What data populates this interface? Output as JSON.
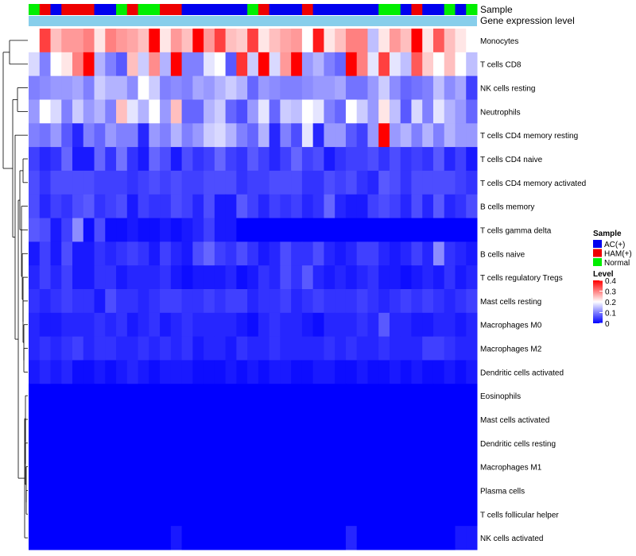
{
  "chart_data": {
    "type": "heatmap",
    "annotation_labels": {
      "sample": "Sample",
      "gene_expression": "Gene expression level"
    },
    "rows": [
      "Monocytes",
      "T cells CD8",
      "NK cells resting",
      "Neutrophils",
      "T cells CD4 memory resting",
      "T cells CD4 naive",
      "T cells CD4 memory activated",
      "B cells memory",
      "T cells gamma delta",
      "B cells naive",
      "T cells regulatory  Tregs",
      "Mast cells resting",
      "Macrophages M0",
      "Macrophages M2",
      "Dendritic cells activated",
      "Eosinophils",
      "Mast cells activated",
      "Dendritic cells resting",
      "Macrophages M1",
      "Plasma cells",
      "T cells follicular helper",
      "NK cells activated"
    ],
    "sample_groups": [
      "Normal",
      "HAM(+)",
      "AC(+)",
      "HAM(+)",
      "HAM(+)",
      "HAM(+)",
      "AC(+)",
      "AC(+)",
      "Normal",
      "HAM(+)",
      "Normal",
      "Normal",
      "HAM(+)",
      "HAM(+)",
      "AC(+)",
      "AC(+)",
      "AC(+)",
      "AC(+)",
      "AC(+)",
      "AC(+)",
      "Normal",
      "HAM(+)",
      "AC(+)",
      "AC(+)",
      "AC(+)",
      "HAM(+)",
      "AC(+)",
      "AC(+)",
      "AC(+)",
      "AC(+)",
      "AC(+)",
      "AC(+)",
      "Normal",
      "Normal",
      "AC(+)",
      "HAM(+)",
      "AC(+)",
      "AC(+)",
      "Normal",
      "AC(+)",
      "Normal"
    ],
    "values": [
      [
        0.2,
        0.35,
        0.25,
        0.28,
        0.28,
        0.3,
        0.22,
        0.3,
        0.28,
        0.27,
        0.25,
        0.4,
        0.22,
        0.28,
        0.25,
        0.4,
        0.28,
        0.35,
        0.25,
        0.24,
        0.35,
        0.22,
        0.25,
        0.27,
        0.28,
        0.2,
        0.38,
        0.22,
        0.25,
        0.3,
        0.3,
        0.15,
        0.22,
        0.28,
        0.25,
        0.4,
        0.22,
        0.33,
        0.25,
        0.22,
        0.2
      ],
      [
        0.17,
        0.1,
        0.2,
        0.22,
        0.3,
        0.42,
        0.14,
        0.1,
        0.07,
        0.25,
        0.16,
        0.29,
        0.14,
        0.4,
        0.1,
        0.1,
        0.18,
        0.2,
        0.07,
        0.36,
        0.16,
        0.42,
        0.17,
        0.28,
        0.4,
        0.12,
        0.14,
        0.1,
        0.08,
        0.4,
        0.3,
        0.18,
        0.35,
        0.18,
        0.15,
        0.33,
        0.24,
        0.2,
        0.25,
        0.2,
        0.15
      ],
      [
        0.1,
        0.11,
        0.12,
        0.12,
        0.13,
        0.1,
        0.16,
        0.14,
        0.14,
        0.11,
        0.2,
        0.16,
        0.1,
        0.11,
        0.1,
        0.13,
        0.12,
        0.14,
        0.16,
        0.14,
        0.08,
        0.12,
        0.11,
        0.1,
        0.1,
        0.11,
        0.12,
        0.12,
        0.13,
        0.09,
        0.09,
        0.12,
        0.16,
        0.11,
        0.08,
        0.09,
        0.1,
        0.15,
        0.11,
        0.13,
        0.05
      ],
      [
        0.12,
        0.2,
        0.17,
        0.1,
        0.16,
        0.12,
        0.14,
        0.1,
        0.25,
        0.18,
        0.14,
        0.2,
        0.12,
        0.25,
        0.08,
        0.08,
        0.14,
        0.16,
        0.08,
        0.06,
        0.12,
        0.18,
        0.08,
        0.16,
        0.15,
        0.2,
        0.18,
        0.1,
        0.08,
        0.2,
        0.16,
        0.12,
        0.22,
        0.15,
        0.07,
        0.17,
        0.1,
        0.18,
        0.14,
        0.12,
        0.08
      ],
      [
        0.1,
        0.09,
        0.12,
        0.07,
        0.03,
        0.1,
        0.08,
        0.12,
        0.1,
        0.1,
        0.03,
        0.12,
        0.1,
        0.14,
        0.1,
        0.12,
        0.16,
        0.17,
        0.14,
        0.1,
        0.08,
        0.14,
        0.03,
        0.1,
        0.06,
        0.18,
        0.03,
        0.12,
        0.12,
        0.07,
        0.05,
        0.12,
        0.4,
        0.12,
        0.14,
        0.1,
        0.14,
        0.1,
        0.14,
        0.12,
        0.12
      ],
      [
        0.05,
        0.03,
        0.04,
        0.08,
        0.02,
        0.02,
        0.08,
        0.04,
        0.09,
        0.04,
        0.02,
        0.08,
        0.06,
        0.02,
        0.06,
        0.04,
        0.05,
        0.08,
        0.05,
        0.04,
        0.07,
        0.05,
        0.03,
        0.05,
        0.08,
        0.05,
        0.06,
        0.02,
        0.04,
        0.05,
        0.05,
        0.06,
        0.04,
        0.06,
        0.04,
        0.05,
        0.04,
        0.07,
        0.03,
        0.05,
        0.02
      ],
      [
        0.06,
        0.04,
        0.06,
        0.06,
        0.06,
        0.06,
        0.05,
        0.05,
        0.05,
        0.04,
        0.05,
        0.06,
        0.05,
        0.06,
        0.05,
        0.05,
        0.06,
        0.06,
        0.06,
        0.04,
        0.05,
        0.05,
        0.06,
        0.06,
        0.06,
        0.04,
        0.04,
        0.06,
        0.05,
        0.06,
        0.04,
        0.03,
        0.07,
        0.06,
        0.04,
        0.06,
        0.06,
        0.06,
        0.06,
        0.05,
        0.04
      ],
      [
        0.06,
        0.03,
        0.05,
        0.04,
        0.06,
        0.07,
        0.04,
        0.05,
        0.06,
        0.02,
        0.05,
        0.04,
        0.04,
        0.06,
        0.05,
        0.03,
        0.06,
        0.02,
        0.02,
        0.07,
        0.05,
        0.03,
        0.05,
        0.04,
        0.05,
        0.03,
        0.04,
        0.08,
        0.03,
        0.02,
        0.02,
        0.05,
        0.06,
        0.05,
        0.03,
        0.06,
        0.03,
        0.07,
        0.03,
        0.04,
        0.06
      ],
      [
        0.07,
        0.06,
        0.02,
        0.05,
        0.11,
        0.01,
        0.06,
        0.01,
        0.01,
        0.02,
        0.01,
        0.01,
        0.02,
        0.01,
        0.02,
        0.03,
        0.05,
        0.02,
        0.02,
        0.0,
        0.0,
        0.0,
        0.0,
        0.0,
        0.0,
        0.0,
        0.0,
        0.0,
        0.0,
        0.0,
        0.0,
        0.0,
        0.0,
        0.0,
        0.0,
        0.0,
        0.0,
        0.0,
        0.0,
        0.0,
        0.0
      ],
      [
        0.02,
        0.05,
        0.02,
        0.06,
        0.02,
        0.02,
        0.04,
        0.03,
        0.04,
        0.05,
        0.04,
        0.02,
        0.05,
        0.03,
        0.02,
        0.06,
        0.08,
        0.05,
        0.04,
        0.06,
        0.04,
        0.02,
        0.03,
        0.06,
        0.04,
        0.04,
        0.06,
        0.03,
        0.02,
        0.03,
        0.05,
        0.05,
        0.03,
        0.02,
        0.03,
        0.05,
        0.03,
        0.11,
        0.04,
        0.03,
        0.02
      ],
      [
        0.03,
        0.05,
        0.03,
        0.05,
        0.02,
        0.02,
        0.04,
        0.04,
        0.02,
        0.03,
        0.03,
        0.03,
        0.04,
        0.02,
        0.01,
        0.02,
        0.02,
        0.02,
        0.03,
        0.01,
        0.02,
        0.04,
        0.03,
        0.06,
        0.04,
        0.07,
        0.03,
        0.02,
        0.03,
        0.02,
        0.03,
        0.04,
        0.02,
        0.02,
        0.01,
        0.02,
        0.03,
        0.02,
        0.04,
        0.02,
        0.03
      ],
      [
        0.04,
        0.03,
        0.04,
        0.05,
        0.04,
        0.04,
        0.02,
        0.06,
        0.04,
        0.04,
        0.03,
        0.04,
        0.05,
        0.05,
        0.04,
        0.04,
        0.05,
        0.04,
        0.05,
        0.05,
        0.03,
        0.04,
        0.04,
        0.05,
        0.03,
        0.04,
        0.05,
        0.04,
        0.04,
        0.04,
        0.05,
        0.04,
        0.03,
        0.04,
        0.05,
        0.04,
        0.05,
        0.04,
        0.03,
        0.04,
        0.05
      ],
      [
        0.03,
        0.02,
        0.02,
        0.03,
        0.03,
        0.03,
        0.04,
        0.03,
        0.04,
        0.02,
        0.03,
        0.04,
        0.02,
        0.03,
        0.04,
        0.03,
        0.03,
        0.03,
        0.03,
        0.02,
        0.01,
        0.03,
        0.04,
        0.03,
        0.03,
        0.02,
        0.01,
        0.03,
        0.03,
        0.03,
        0.04,
        0.03,
        0.07,
        0.03,
        0.03,
        0.02,
        0.02,
        0.03,
        0.03,
        0.02,
        0.03
      ],
      [
        0.03,
        0.04,
        0.03,
        0.04,
        0.05,
        0.03,
        0.04,
        0.04,
        0.03,
        0.03,
        0.04,
        0.03,
        0.04,
        0.03,
        0.04,
        0.02,
        0.03,
        0.03,
        0.02,
        0.04,
        0.03,
        0.03,
        0.04,
        0.03,
        0.03,
        0.03,
        0.03,
        0.04,
        0.03,
        0.04,
        0.03,
        0.03,
        0.04,
        0.03,
        0.03,
        0.03,
        0.05,
        0.05,
        0.04,
        0.03,
        0.03
      ],
      [
        0.02,
        0.03,
        0.02,
        0.03,
        0.01,
        0.01,
        0.02,
        0.01,
        0.02,
        0.03,
        0.02,
        0.01,
        0.02,
        0.02,
        0.02,
        0.01,
        0.01,
        0.01,
        0.02,
        0.01,
        0.02,
        0.01,
        0.02,
        0.02,
        0.01,
        0.01,
        0.02,
        0.02,
        0.01,
        0.01,
        0.02,
        0.01,
        0.01,
        0.02,
        0.01,
        0.02,
        0.01,
        0.01,
        0.02,
        0.01,
        0.02
      ],
      [
        0,
        0,
        0,
        0,
        0,
        0,
        0,
        0,
        0,
        0,
        0,
        0,
        0,
        0,
        0,
        0,
        0,
        0,
        0,
        0,
        0,
        0,
        0,
        0,
        0,
        0,
        0,
        0,
        0,
        0,
        0,
        0,
        0,
        0,
        0,
        0,
        0,
        0,
        0,
        0,
        0
      ],
      [
        0,
        0,
        0,
        0,
        0,
        0,
        0,
        0,
        0,
        0,
        0,
        0,
        0,
        0,
        0,
        0,
        0,
        0,
        0,
        0,
        0,
        0,
        0,
        0,
        0,
        0,
        0,
        0,
        0,
        0,
        0,
        0,
        0,
        0,
        0,
        0,
        0,
        0,
        0,
        0,
        0
      ],
      [
        0,
        0,
        0,
        0,
        0,
        0,
        0,
        0,
        0,
        0,
        0,
        0,
        0,
        0,
        0,
        0,
        0,
        0,
        0,
        0,
        0,
        0,
        0,
        0,
        0,
        0,
        0,
        0,
        0,
        0,
        0,
        0,
        0,
        0,
        0,
        0,
        0,
        0,
        0,
        0,
        0
      ],
      [
        0,
        0,
        0,
        0,
        0,
        0,
        0,
        0,
        0,
        0,
        0,
        0,
        0,
        0,
        0,
        0,
        0,
        0,
        0,
        0,
        0,
        0,
        0,
        0,
        0,
        0,
        0,
        0,
        0,
        0,
        0,
        0,
        0,
        0,
        0,
        0,
        0,
        0,
        0,
        0,
        0
      ],
      [
        0,
        0,
        0,
        0,
        0,
        0,
        0,
        0,
        0,
        0,
        0,
        0,
        0,
        0,
        0,
        0,
        0,
        0,
        0,
        0,
        0,
        0,
        0,
        0,
        0,
        0,
        0,
        0,
        0,
        0,
        0,
        0,
        0,
        0,
        0,
        0,
        0,
        0,
        0,
        0,
        0
      ],
      [
        0,
        0,
        0,
        0,
        0,
        0,
        0,
        0,
        0,
        0,
        0,
        0,
        0,
        0,
        0,
        0,
        0,
        0,
        0,
        0,
        0,
        0,
        0,
        0,
        0,
        0,
        0,
        0,
        0,
        0,
        0,
        0,
        0,
        0,
        0,
        0,
        0,
        0,
        0,
        0,
        0
      ],
      [
        0,
        0,
        0,
        0,
        0,
        0,
        0,
        0,
        0,
        0,
        0,
        0,
        0,
        0.02,
        0,
        0,
        0,
        0,
        0,
        0,
        0,
        0,
        0,
        0,
        0,
        0,
        0,
        0,
        0,
        0.03,
        0,
        0,
        0,
        0,
        0,
        0,
        0,
        0,
        0,
        0.02,
        0.02
      ]
    ],
    "legend": {
      "sample": {
        "title": "Sample",
        "entries": [
          {
            "label": "AC(+)",
            "color": "#0000ee"
          },
          {
            "label": "HAM(+)",
            "color": "#ee0000"
          },
          {
            "label": "Normal",
            "color": "#00ee00"
          }
        ]
      },
      "level": {
        "title": "Level",
        "ticks": [
          "0.4",
          "0.3",
          "0.2",
          "0.1",
          "0"
        ],
        "tick_values": [
          0.4,
          0.3,
          0.2,
          0.1,
          0
        ],
        "range": [
          0,
          0.4
        ]
      }
    },
    "colors": {
      "low": "#0000ff",
      "mid": "#ffffff",
      "high": "#ff0000",
      "mid_value": 0.2,
      "annotation_gene": "#87ceeb"
    }
  }
}
